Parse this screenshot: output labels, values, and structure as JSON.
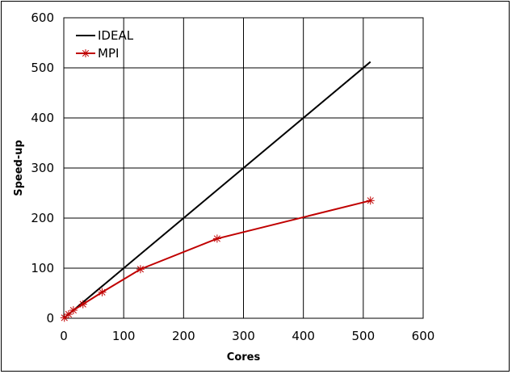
{
  "chart_data": {
    "type": "line",
    "title": "",
    "xlabel": "Cores",
    "ylabel": "Speed-up",
    "xlim": [
      0,
      600
    ],
    "ylim": [
      0,
      600
    ],
    "xticks": [
      0,
      100,
      200,
      300,
      400,
      500,
      600
    ],
    "yticks": [
      0,
      100,
      200,
      300,
      400,
      500,
      600
    ],
    "grid": true,
    "legend_position": "top-left",
    "series": [
      {
        "name": "IDEAL",
        "color": "#000000",
        "marker": "none",
        "x": [
          1,
          8,
          16,
          32,
          64,
          128,
          256,
          512
        ],
        "y": [
          1,
          8,
          16,
          32,
          64,
          128,
          256,
          512
        ]
      },
      {
        "name": "MPI",
        "color": "#c00000",
        "marker": "asterisk",
        "x": [
          1,
          8,
          16,
          32,
          64,
          128,
          256,
          512
        ],
        "y": [
          1,
          8,
          16,
          28,
          52,
          98,
          159,
          235
        ]
      }
    ]
  }
}
